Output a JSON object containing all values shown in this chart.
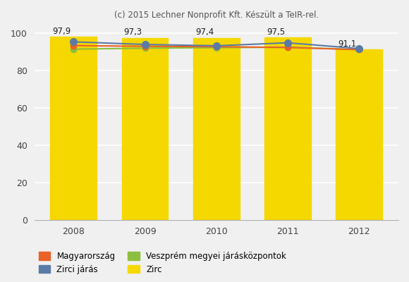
{
  "title": "(c) 2015 Lechner Nonprofit Kft. Készült a TeIR-rel.",
  "years": [
    2008,
    2009,
    2010,
    2011,
    2012
  ],
  "bar_values": [
    97.9,
    97.3,
    97.4,
    97.5,
    91.1
  ],
  "bar_color": "#F5D800",
  "magyarorszag": [
    93.2,
    92.8,
    92.6,
    92.2,
    91.0
  ],
  "veszprem": [
    91.3,
    91.8,
    92.1,
    92.3,
    91.1
  ],
  "zirci_jaras": [
    95.2,
    93.8,
    93.1,
    94.7,
    91.6
  ],
  "magyarorszag_color": "#E8622A",
  "veszprem_color": "#8CBF3F",
  "zirci_jaras_color": "#5B7BA6",
  "ylim": [
    0,
    105
  ],
  "yticks": [
    0,
    20,
    40,
    60,
    80,
    100
  ],
  "bar_width": 0.65,
  "legend_labels": [
    "Magyarország",
    "Veszprém megyei járásközpontok",
    "Zirci járás",
    "Zirc"
  ],
  "bg_color": "#f0f0f0",
  "grid_color": "#ffffff",
  "title_fontsize": 8.5,
  "tick_fontsize": 9
}
